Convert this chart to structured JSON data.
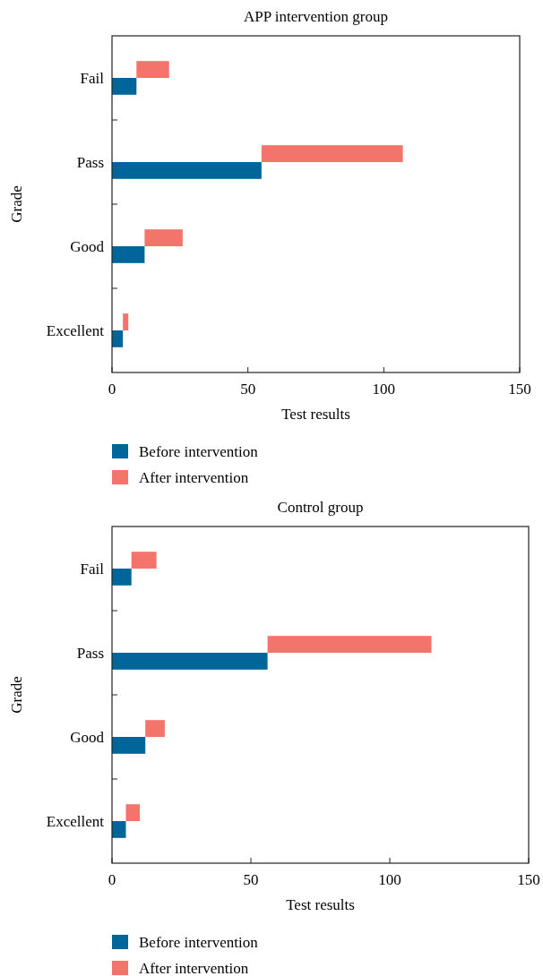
{
  "chart_data": [
    {
      "type": "bar",
      "title": "APP intervention group",
      "orientation": "horizontal",
      "xlabel": "Test results",
      "ylabel": "Grade",
      "categories": [
        "Fail",
        "Pass",
        "Good",
        "Excellent"
      ],
      "xlim": [
        0,
        150
      ],
      "xticks": [
        0,
        50,
        100,
        150
      ],
      "legend": "bottom",
      "grid": false,
      "series": [
        {
          "name": "Before intervention",
          "color": "#006699",
          "values": [
            9,
            55,
            12,
            4
          ]
        },
        {
          "name": "After intervention",
          "color": "#f2746b",
          "values": [
            12,
            52,
            14,
            2
          ],
          "base": [
            9,
            55,
            12,
            4
          ]
        }
      ]
    },
    {
      "type": "bar",
      "title": "Control group",
      "orientation": "horizontal",
      "xlabel": "Test results",
      "ylabel": "Grade",
      "categories": [
        "Fail",
        "Pass",
        "Good",
        "Excellent"
      ],
      "xlim": [
        0,
        150
      ],
      "xticks": [
        0,
        50,
        100,
        150
      ],
      "legend": "bottom",
      "grid": false,
      "series": [
        {
          "name": "Before intervention",
          "color": "#006699",
          "values": [
            7,
            56,
            12,
            5
          ]
        },
        {
          "name": "After intervention",
          "color": "#f2746b",
          "values": [
            9,
            59,
            7,
            5
          ],
          "base": [
            7,
            56,
            12,
            5
          ]
        }
      ]
    }
  ]
}
